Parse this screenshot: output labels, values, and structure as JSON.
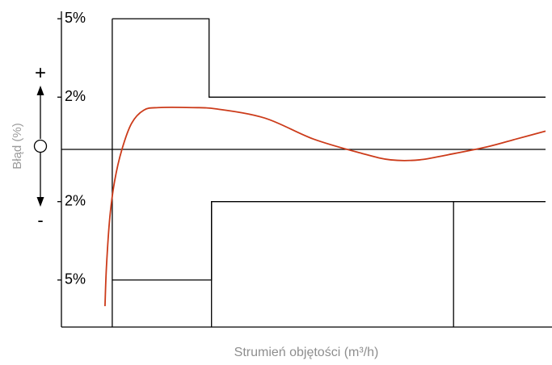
{
  "chart_data": {
    "type": "line",
    "xlabel": "Strumień objętości (m³/h)",
    "ylabel": "Błąd (%)",
    "axis_markers": {
      "plus": "+",
      "zero": "O",
      "minus": "-"
    },
    "y_ticks": [
      {
        "value": 5,
        "label": "5%"
      },
      {
        "value": 2,
        "label": "2%"
      },
      {
        "value": -2,
        "label": "2%"
      },
      {
        "value": -5,
        "label": "5%"
      }
    ],
    "ylim": [
      -6.8,
      5.1
    ],
    "xlim": [
      0,
      100
    ],
    "zero_line": true,
    "error_limits": {
      "upper": [
        [
          10.5,
          5
        ],
        [
          30.5,
          5
        ],
        [
          30.5,
          2
        ],
        [
          100,
          2
        ]
      ],
      "lower": [
        [
          10.5,
          -5
        ],
        [
          31,
          -5
        ],
        [
          31,
          -2
        ],
        [
          100,
          -2
        ]
      ],
      "verticals": [
        10.5,
        31,
        81
      ]
    },
    "series": [
      {
        "color": "#cc3b1a",
        "points": [
          [
            9,
            -6
          ],
          [
            9.3,
            -4.5
          ],
          [
            10,
            -2.6
          ],
          [
            11,
            -1.2
          ],
          [
            12.5,
            0
          ],
          [
            14.5,
            1.0
          ],
          [
            17,
            1.5
          ],
          [
            20,
            1.6
          ],
          [
            27,
            1.6
          ],
          [
            32,
            1.55
          ],
          [
            42,
            1.2
          ],
          [
            52,
            0.4
          ],
          [
            62,
            -0.15
          ],
          [
            68,
            -0.4
          ],
          [
            74,
            -0.4
          ],
          [
            80,
            -0.2
          ],
          [
            88,
            0.1
          ],
          [
            94,
            0.4
          ],
          [
            100,
            0.7
          ]
        ]
      }
    ]
  }
}
